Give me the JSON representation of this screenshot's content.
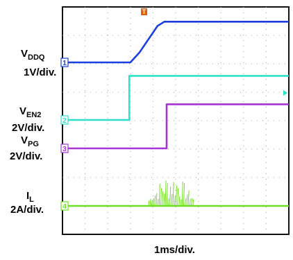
{
  "chart_data": {
    "type": "line",
    "title": "",
    "timebase": "1ms/div.",
    "grid": true,
    "x_divisions": 10,
    "y_divisions": 8,
    "trigger_marker": "T",
    "channels": [
      {
        "id": "1",
        "name_main": "V",
        "name_sub": "DDQ",
        "scale": "1V/div.",
        "color": "#1a3fe0",
        "noise": 0,
        "points": [
          [
            0,
            0
          ],
          [
            3.0,
            0
          ],
          [
            3.4,
            0.35
          ],
          [
            4.2,
            1.3
          ],
          [
            4.5,
            1.45
          ],
          [
            10,
            1.45
          ]
        ]
      },
      {
        "id": "2",
        "name_main": "V",
        "name_sub": "EN2",
        "scale": "2V/div.",
        "color": "#2ee0c8",
        "noise": 0,
        "points": [
          [
            0,
            0
          ],
          [
            2.95,
            0
          ],
          [
            2.95,
            1.55
          ],
          [
            10,
            1.55
          ]
        ]
      },
      {
        "id": "3",
        "name_main": "V",
        "name_sub": "PG",
        "scale": "2V/div.",
        "color": "#a433d8",
        "noise": 0,
        "points": [
          [
            0,
            0
          ],
          [
            4.6,
            0
          ],
          [
            4.6,
            1.55
          ],
          [
            10,
            1.55
          ]
        ]
      },
      {
        "id": "4",
        "name_main": "I",
        "name_sub": "L",
        "scale": "2A/div.",
        "color": "#6fe020",
        "noise": 1,
        "points": [
          [
            0,
            0
          ],
          [
            10,
            0
          ]
        ]
      }
    ]
  }
}
